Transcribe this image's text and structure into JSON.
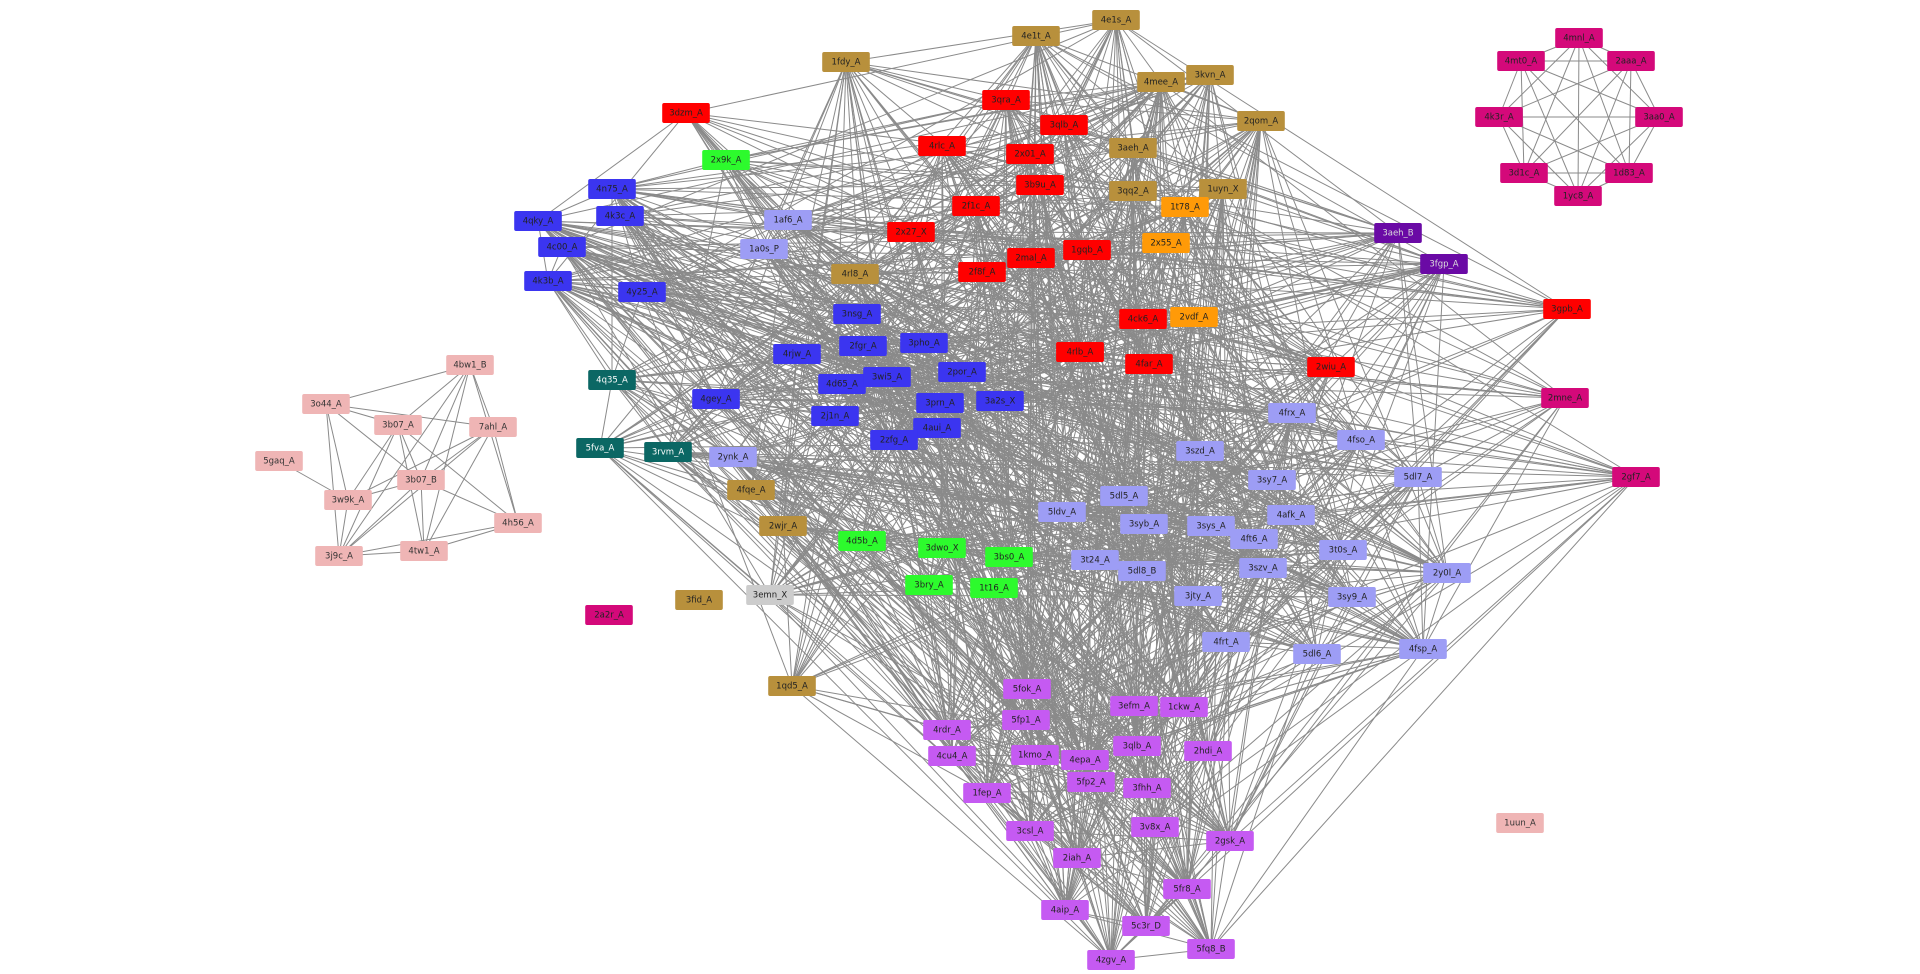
{
  "colors": {
    "tan": "#b8903c",
    "red": "#ff0000",
    "blue": "#3b35f0",
    "lavender": "#9d9df5",
    "green": "#2dfa2d",
    "teal": "#0b6764",
    "orange": "#ff9a08",
    "purple": "#6a0aa5",
    "magenta": "#d4097a",
    "violet": "#c55af2",
    "pink": "#efb5b5",
    "gray": "#cccccc",
    "edge": "#8a8a8a"
  },
  "nodes": [
    {
      "id": "4e1s_A",
      "group": "tan",
      "cluster": "main"
    },
    {
      "id": "4e1t_A",
      "group": "tan",
      "cluster": "main"
    },
    {
      "id": "1fdy_A",
      "group": "tan",
      "cluster": "main"
    },
    {
      "id": "4mee_A",
      "group": "tan",
      "cluster": "main"
    },
    {
      "id": "3kvn_A",
      "group": "tan",
      "cluster": "main"
    },
    {
      "id": "2qom_A",
      "group": "tan",
      "cluster": "main"
    },
    {
      "id": "3aeh_A",
      "group": "tan",
      "cluster": "main"
    },
    {
      "id": "3qq2_A",
      "group": "tan",
      "cluster": "main"
    },
    {
      "id": "4rl8_A",
      "group": "tan",
      "cluster": "main"
    },
    {
      "id": "4fqe_A",
      "group": "tan",
      "cluster": "main"
    },
    {
      "id": "2wjr_A",
      "group": "tan",
      "cluster": "main"
    },
    {
      "id": "1qd5_A",
      "group": "tan",
      "cluster": "main"
    },
    {
      "id": "3fid_A",
      "group": "tan",
      "cluster": "isolated"
    },
    {
      "id": "3dzm_A",
      "group": "red",
      "cluster": "main"
    },
    {
      "id": "3qra_A",
      "group": "red",
      "cluster": "main"
    },
    {
      "id": "3qlb_A",
      "group": "red",
      "cluster": "main"
    },
    {
      "id": "4rlc_A",
      "group": "red",
      "cluster": "main"
    },
    {
      "id": "2x01_A",
      "group": "red",
      "cluster": "main"
    },
    {
      "id": "3b9u_A",
      "group": "red",
      "cluster": "main"
    },
    {
      "id": "2f1c_A",
      "group": "red",
      "cluster": "main"
    },
    {
      "id": "2x27_X",
      "group": "red",
      "cluster": "main"
    },
    {
      "id": "2mal_A",
      "group": "red",
      "cluster": "main"
    },
    {
      "id": "1gqb_A",
      "group": "red",
      "cluster": "main"
    },
    {
      "id": "2f8f_A",
      "group": "red",
      "cluster": "main"
    },
    {
      "id": "4rlb_A",
      "group": "red",
      "cluster": "main"
    },
    {
      "id": "4rlb_A",
      "group": "red",
      "cluster": "main"
    },
    {
      "id": "4far_A",
      "group": "red",
      "cluster": "main"
    },
    {
      "id": "2wiu_A",
      "group": "red",
      "cluster": "main"
    },
    {
      "id": "3gpb_A",
      "group": "red",
      "cluster": "main"
    },
    {
      "id": "2x9k_A",
      "group": "green",
      "cluster": "main"
    },
    {
      "id": "4d5b_A",
      "group": "green",
      "cluster": "main"
    },
    {
      "id": "3dwo_X",
      "group": "green",
      "cluster": "main"
    },
    {
      "id": "3bs0_A",
      "group": "green",
      "cluster": "main"
    },
    {
      "id": "3bry_A",
      "group": "green",
      "cluster": "main"
    },
    {
      "id": "1t16_A",
      "group": "green",
      "cluster": "main"
    },
    {
      "id": "4n75_A",
      "group": "blue",
      "cluster": "main"
    },
    {
      "id": "4k3c_A",
      "group": "blue",
      "cluster": "main"
    },
    {
      "id": "4qky_A",
      "group": "blue",
      "cluster": "main"
    },
    {
      "id": "4c00_A",
      "group": "blue",
      "cluster": "main"
    },
    {
      "id": "4k3b_A",
      "group": "blue",
      "cluster": "main"
    },
    {
      "id": "4y25_A",
      "group": "blue",
      "cluster": "main"
    },
    {
      "id": "3nsg_A",
      "group": "blue",
      "cluster": "main"
    },
    {
      "id": "2fgr_A",
      "group": "blue",
      "cluster": "main"
    },
    {
      "id": "4rjw_A",
      "group": "blue",
      "cluster": "main"
    },
    {
      "id": "3pho_A",
      "group": "blue",
      "cluster": "main"
    },
    {
      "id": "4d65_A",
      "group": "blue",
      "cluster": "main"
    },
    {
      "id": "3wi5_A",
      "group": "blue",
      "cluster": "main"
    },
    {
      "id": "2por_A",
      "group": "blue",
      "cluster": "main"
    },
    {
      "id": "4gey_A",
      "group": "blue",
      "cluster": "main"
    },
    {
      "id": "3prn_A",
      "group": "blue",
      "cluster": "main"
    },
    {
      "id": "3a2s_X",
      "group": "blue",
      "cluster": "main"
    },
    {
      "id": "2j1n_A",
      "group": "blue",
      "cluster": "main"
    },
    {
      "id": "4aui_A",
      "group": "blue",
      "cluster": "main"
    },
    {
      "id": "2zfg_A",
      "group": "blue",
      "cluster": "main"
    },
    {
      "id": "1af6_A",
      "group": "lavender",
      "cluster": "main"
    },
    {
      "id": "1a0s_P",
      "group": "lavender",
      "cluster": "main"
    },
    {
      "id": "2ynk_A",
      "group": "lavender",
      "cluster": "main"
    },
    {
      "id": "4frx_A",
      "group": "lavender",
      "cluster": "main"
    },
    {
      "id": "4fso_A",
      "group": "lavender",
      "cluster": "main"
    },
    {
      "id": "3szd_A",
      "group": "lavender",
      "cluster": "main"
    },
    {
      "id": "5dl7_A",
      "group": "lavender",
      "cluster": "main"
    },
    {
      "id": "3sy7_A",
      "group": "lavender",
      "cluster": "main"
    },
    {
      "id": "5dl5_A",
      "group": "lavender",
      "cluster": "main"
    },
    {
      "id": "5ldv_A",
      "group": "lavender",
      "cluster": "main"
    },
    {
      "id": "4afk_A",
      "group": "lavender",
      "cluster": "main"
    },
    {
      "id": "3syb_A",
      "group": "lavender",
      "cluster": "main"
    },
    {
      "id": "3sys_A",
      "group": "lavender",
      "cluster": "main"
    },
    {
      "id": "4ft6_A",
      "group": "lavender",
      "cluster": "main"
    },
    {
      "id": "3t0s_A",
      "group": "lavender",
      "cluster": "main"
    },
    {
      "id": "3szv_A",
      "group": "lavender",
      "cluster": "main"
    },
    {
      "id": "3t24_A",
      "group": "lavender",
      "cluster": "main"
    },
    {
      "id": "5dl8_B",
      "group": "lavender",
      "cluster": "main"
    },
    {
      "id": "2y0l_A",
      "group": "lavender",
      "cluster": "main"
    },
    {
      "id": "3sy9_A",
      "group": "lavender",
      "cluster": "main"
    },
    {
      "id": "3jty_A",
      "group": "lavender",
      "cluster": "main"
    },
    {
      "id": "4frt_A",
      "group": "lavender",
      "cluster": "main"
    },
    {
      "id": "5dl6_A",
      "group": "lavender",
      "cluster": "main"
    },
    {
      "id": "4fsp_A",
      "group": "lavender",
      "cluster": "main"
    },
    {
      "id": "1uyn_X",
      "group": "tan",
      "cluster": "main"
    },
    {
      "id": "1t78_A",
      "group": "orange",
      "cluster": "main"
    },
    {
      "id": "2x55_A",
      "group": "orange",
      "cluster": "main"
    },
    {
      "id": "2vdf_A",
      "group": "orange",
      "cluster": "main"
    },
    {
      "id": "4ck6_A",
      "group": "red",
      "cluster": "main"
    },
    {
      "id": "3aeh_B",
      "group": "purple",
      "cluster": "main"
    },
    {
      "id": "3fgp_A",
      "group": "purple",
      "cluster": "main"
    },
    {
      "id": "2mne_A",
      "group": "magenta",
      "cluster": "main"
    },
    {
      "id": "2gf7_A",
      "group": "magenta",
      "cluster": "main"
    },
    {
      "id": "4q35_A",
      "group": "teal",
      "cluster": "main"
    },
    {
      "id": "5fva_A",
      "group": "teal",
      "cluster": "main"
    },
    {
      "id": "3rvm_A",
      "group": "teal",
      "cluster": "main"
    },
    {
      "id": "3emn_X",
      "group": "gray",
      "cluster": "main"
    },
    {
      "id": "5fok_A",
      "group": "violet",
      "cluster": "main"
    },
    {
      "id": "3efm_A",
      "group": "violet",
      "cluster": "main"
    },
    {
      "id": "1ckw_A",
      "group": "violet",
      "cluster": "main"
    },
    {
      "id": "4rdr_A",
      "group": "violet",
      "cluster": "main"
    },
    {
      "id": "5fp1_A",
      "group": "violet",
      "cluster": "main"
    },
    {
      "id": "4cu4_A",
      "group": "violet",
      "cluster": "main"
    },
    {
      "id": "1kmo_A",
      "group": "violet",
      "cluster": "main"
    },
    {
      "id": "4epa_A",
      "group": "violet",
      "cluster": "main"
    },
    {
      "id": "3qlb_A",
      "group": "violet",
      "cluster": "main"
    },
    {
      "id": "2hdi_A",
      "group": "violet",
      "cluster": "main"
    },
    {
      "id": "1fep_A",
      "group": "violet",
      "cluster": "main"
    },
    {
      "id": "5fp2_A",
      "group": "violet",
      "cluster": "main"
    },
    {
      "id": "3fhh_A",
      "group": "violet",
      "cluster": "main"
    },
    {
      "id": "3csl_A",
      "group": "violet",
      "cluster": "main"
    },
    {
      "id": "3v8x_A",
      "group": "violet",
      "cluster": "main"
    },
    {
      "id": "2gsk_A",
      "group": "violet",
      "cluster": "main"
    },
    {
      "id": "2iah_A",
      "group": "violet",
      "cluster": "main"
    },
    {
      "id": "5fr8_A",
      "group": "violet",
      "cluster": "main"
    },
    {
      "id": "4aip_A",
      "group": "violet",
      "cluster": "main"
    },
    {
      "id": "5c3r_D",
      "group": "violet",
      "cluster": "main"
    },
    {
      "id": "4zgv_A",
      "group": "violet",
      "cluster": "main"
    },
    {
      "id": "5fq8_B",
      "group": "violet",
      "cluster": "main"
    },
    {
      "id": "4mnl_A",
      "group": "magenta",
      "cluster": "ring"
    },
    {
      "id": "4mt0_A",
      "group": "magenta",
      "cluster": "ring"
    },
    {
      "id": "2aaa_A",
      "group": "magenta",
      "cluster": "ring"
    },
    {
      "id": "4k3r_A",
      "group": "magenta",
      "cluster": "ring"
    },
    {
      "id": "3aa0_A",
      "group": "magenta",
      "cluster": "ring"
    },
    {
      "id": "3d1c_A",
      "group": "magenta",
      "cluster": "ring"
    },
    {
      "id": "1d83_A",
      "group": "magenta",
      "cluster": "ring"
    },
    {
      "id": "1yc8_A",
      "group": "magenta",
      "cluster": "ring"
    },
    {
      "id": "4bw1_B",
      "group": "pink",
      "cluster": "left"
    },
    {
      "id": "3o44_A",
      "group": "pink",
      "cluster": "left"
    },
    {
      "id": "3b07_A",
      "group": "pink",
      "cluster": "left"
    },
    {
      "id": "7ahl_A",
      "group": "pink",
      "cluster": "left"
    },
    {
      "id": "5gaq_A",
      "group": "pink",
      "cluster": "left"
    },
    {
      "id": "3b07_B",
      "group": "pink",
      "cluster": "left"
    },
    {
      "id": "3w9k_A",
      "group": "pink",
      "cluster": "left"
    },
    {
      "id": "4h56_A",
      "group": "pink",
      "cluster": "left"
    },
    {
      "id": "3j9c_A",
      "group": "pink",
      "cluster": "left"
    },
    {
      "id": "4tw1_A",
      "group": "pink",
      "cluster": "left"
    },
    {
      "id": "1uun_A",
      "group": "pink",
      "cluster": "isolated"
    },
    {
      "id": "2a2r_A",
      "group": "magenta",
      "cluster": "isolated"
    }
  ],
  "edges_left": [
    [
      "4bw1_B",
      "3o44_A"
    ],
    [
      "4bw1_B",
      "3b07_A"
    ],
    [
      "4bw1_B",
      "7ahl_A"
    ],
    [
      "4bw1_B",
      "3b07_B"
    ],
    [
      "4bw1_B",
      "4h56_A"
    ],
    [
      "4bw1_B",
      "3j9c_A"
    ],
    [
      "4bw1_B",
      "4tw1_A"
    ],
    [
      "3o44_A",
      "3b07_A"
    ],
    [
      "3o44_A",
      "3w9k_A"
    ],
    [
      "3o44_A",
      "3j9c_A"
    ],
    [
      "3o44_A",
      "7ahl_A"
    ],
    [
      "3o44_A",
      "3b07_B"
    ],
    [
      "3b07_A",
      "3b07_B"
    ],
    [
      "3b07_A",
      "3w9k_A"
    ],
    [
      "3b07_A",
      "3j9c_A"
    ],
    [
      "3b07_A",
      "4tw1_A"
    ],
    [
      "3b07_A",
      "4h56_A"
    ],
    [
      "7ahl_A",
      "3b07_B"
    ],
    [
      "7ahl_A",
      "4h56_A"
    ],
    [
      "7ahl_A",
      "4tw1_A"
    ],
    [
      "7ahl_A",
      "3j9c_A"
    ],
    [
      "7ahl_A",
      "3w9k_A"
    ],
    [
      "5gaq_A",
      "3w9k_A"
    ],
    [
      "3b07_B",
      "3w9k_A"
    ],
    [
      "3b07_B",
      "3j9c_A"
    ],
    [
      "3b07_B",
      "4tw1_A"
    ],
    [
      "3b07_B",
      "4h56_A"
    ],
    [
      "3w9k_A",
      "3j9c_A"
    ],
    [
      "3j9c_A",
      "4tw1_A"
    ],
    [
      "4tw1_A",
      "4h56_A"
    ],
    [
      "3j9c_A",
      "4h56_A"
    ]
  ]
}
